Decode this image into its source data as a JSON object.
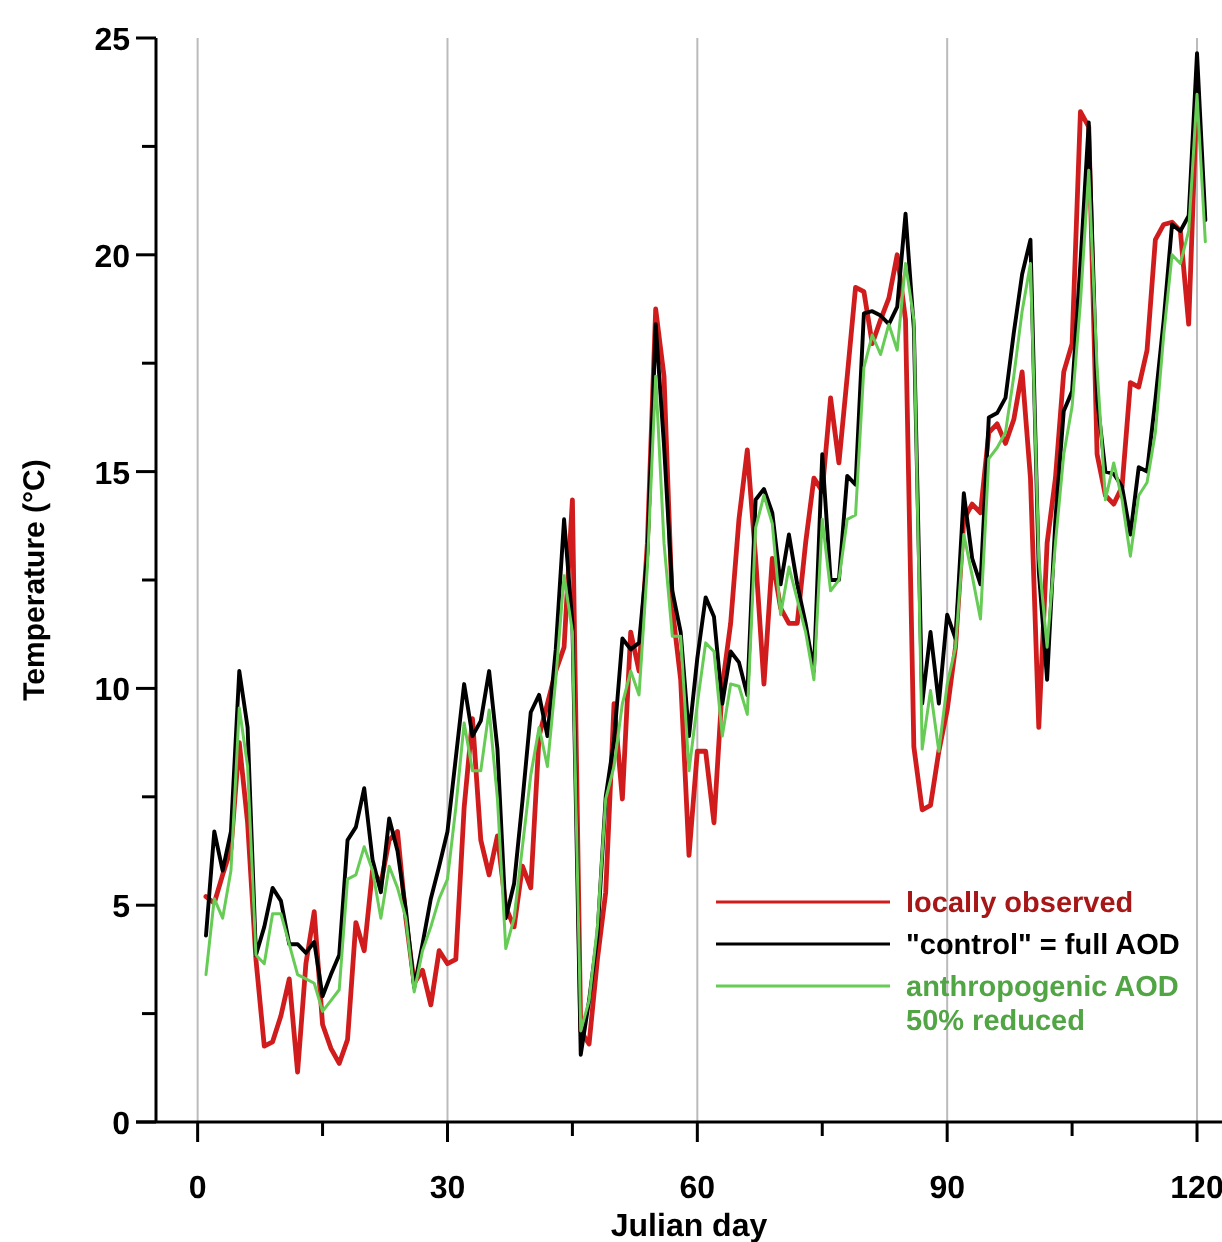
{
  "chart_data": {
    "type": "line",
    "xlabel": "Julian day",
    "ylabel": "Temperature (°C)",
    "x": [
      1,
      2,
      3,
      4,
      5,
      6,
      7,
      8,
      9,
      10,
      11,
      12,
      13,
      14,
      15,
      16,
      17,
      18,
      19,
      20,
      21,
      22,
      23,
      24,
      25,
      26,
      27,
      28,
      29,
      30,
      31,
      32,
      33,
      34,
      35,
      36,
      37,
      38,
      39,
      40,
      41,
      42,
      43,
      44,
      45,
      46,
      47,
      48,
      49,
      50,
      51,
      52,
      53,
      54,
      55,
      56,
      57,
      58,
      59,
      60,
      61,
      62,
      63,
      64,
      65,
      66,
      67,
      68,
      69,
      70,
      71,
      72,
      73,
      74,
      75,
      76,
      77,
      78,
      79,
      80,
      81,
      82,
      83,
      84,
      85,
      86,
      87,
      88,
      89,
      90,
      91,
      92,
      93,
      94,
      95,
      96,
      97,
      98,
      99,
      100,
      101,
      102,
      103,
      104,
      105,
      106,
      107,
      108,
      109,
      110,
      111,
      112,
      113,
      114,
      115,
      116,
      117,
      118,
      119,
      120,
      121
    ],
    "series": [
      {
        "name": "locally observed",
        "color": "#d01c1c",
        "values": [
          5.2,
          5.05,
          5.7,
          6.3,
          8.75,
          6.9,
          3.75,
          1.75,
          1.85,
          2.45,
          3.3,
          1.15,
          3.65,
          4.85,
          2.25,
          1.7,
          1.35,
          1.9,
          4.6,
          3.95,
          5.8,
          5.5,
          6.5,
          6.7,
          4.7,
          3.2,
          3.5,
          2.7,
          3.95,
          3.65,
          3.75,
          7.25,
          9.3,
          6.5,
          5.7,
          6.6,
          4.95,
          4.5,
          5.9,
          5.4,
          8.9,
          9.65,
          10.4,
          10.95,
          14.35,
          2.1,
          1.8,
          3.75,
          5.3,
          9.65,
          7.45,
          11.3,
          10.4,
          13.35,
          18.75,
          17.2,
          11.85,
          10.2,
          6.15,
          8.55,
          8.55,
          6.9,
          10.05,
          11.5,
          13.9,
          15.5,
          13,
          10.1,
          13,
          11.85,
          11.5,
          11.5,
          13.35,
          14.85,
          14.55,
          16.7,
          15.2,
          17.2,
          19.25,
          19.15,
          17.95,
          18.5,
          19,
          20,
          18.5,
          8.65,
          7.2,
          7.3,
          8.55,
          9.5,
          10.95,
          13.9,
          14.25,
          14.05,
          15.9,
          16.1,
          15.65,
          16.2,
          17.3,
          14.85,
          9.1,
          13.35,
          14.85,
          17.3,
          17.95,
          23.3,
          22.95,
          15.4,
          14.45,
          14.25,
          14.65,
          17.05,
          16.95,
          17.8,
          20.35,
          20.7,
          20.75,
          20.55,
          18.4,
          23.8,
          null
        ]
      },
      {
        "name": "\"control\" = full AOD",
        "color": "#000000",
        "values": [
          4.3,
          6.7,
          5.8,
          6.7,
          10.4,
          9.1,
          3.85,
          4.5,
          5.4,
          5.1,
          4.1,
          4.1,
          3.9,
          4.15,
          2.9,
          3.4,
          3.85,
          6.5,
          6.8,
          7.7,
          6.05,
          5.3,
          7,
          6.25,
          4.9,
          3.1,
          4.1,
          5.15,
          5.9,
          6.7,
          8.4,
          10.1,
          8.9,
          9.25,
          10.4,
          8.6,
          4.7,
          5.5,
          7.4,
          9.45,
          9.85,
          8.9,
          10.9,
          13.9,
          11.5,
          1.55,
          2.8,
          4.3,
          7.5,
          8.8,
          11.15,
          10.9,
          11.05,
          13.1,
          18.4,
          15.6,
          12.25,
          11.3,
          8.9,
          10.7,
          12.1,
          11.65,
          9.65,
          10.85,
          10.6,
          9.85,
          14.35,
          14.6,
          14.05,
          12.4,
          13.55,
          12.4,
          11.5,
          10.4,
          15.4,
          12.5,
          12.5,
          14.9,
          14.7,
          18.65,
          18.7,
          18.6,
          18.4,
          18.8,
          20.95,
          18.3,
          9.65,
          11.3,
          9.65,
          11.7,
          11.15,
          14.5,
          13,
          12.4,
          16.25,
          16.35,
          16.7,
          18.2,
          19.55,
          20.35,
          12.7,
          10.2,
          13.9,
          16.4,
          16.85,
          19.8,
          23.05,
          16.7,
          15,
          14.95,
          14.65,
          13.55,
          15.1,
          15,
          16.65,
          18.5,
          20.7,
          20.55,
          20.9,
          24.65,
          20.8
        ]
      },
      {
        "name": "anthropogenic AOD\n50% reduced",
        "color": "#66cc55",
        "values": [
          3.4,
          5.15,
          4.7,
          5.8,
          9.55,
          8.2,
          3.85,
          3.65,
          4.8,
          4.8,
          4.1,
          3.4,
          3.3,
          3.2,
          2.55,
          2.8,
          3.05,
          5.6,
          5.7,
          6.35,
          5.8,
          4.7,
          5.9,
          5.4,
          4.7,
          3,
          3.95,
          4.5,
          5.15,
          5.6,
          7.25,
          9.2,
          8.1,
          8.1,
          9.5,
          7.45,
          4,
          4.7,
          6.35,
          8,
          9.1,
          8.2,
          10.2,
          12.6,
          11.3,
          2.1,
          2.8,
          4.5,
          7.45,
          8.2,
          9.65,
          10.4,
          9.85,
          12.8,
          17.2,
          13.35,
          11.2,
          11.2,
          8.1,
          9.65,
          11.05,
          10.85,
          8.9,
          10.1,
          10.05,
          9.4,
          13.7,
          14.45,
          13.8,
          11.7,
          12.8,
          12.05,
          11.3,
          10.2,
          13.9,
          12.25,
          12.5,
          13.9,
          14,
          17.4,
          18.15,
          17.7,
          18.4,
          17.8,
          19.8,
          18.5,
          8.6,
          9.95,
          8.55,
          10.1,
          10.95,
          13.55,
          12.6,
          11.6,
          15.3,
          15.55,
          15.9,
          17.2,
          18.7,
          19.8,
          13,
          10.95,
          13.35,
          15.4,
          16.5,
          18.9,
          21.95,
          17.4,
          14.35,
          15.2,
          14.35,
          13.05,
          14.45,
          14.75,
          15.9,
          18.15,
          20,
          19.8,
          20.55,
          23.7,
          20.3
        ]
      }
    ],
    "xlim": [
      -5,
      123
    ],
    "ylim": [
      0,
      25
    ],
    "xticks": [
      0,
      {
        "value": 15,
        "label": null
      },
      30,
      {
        "value": 45,
        "label": null
      },
      60,
      {
        "value": 75,
        "label": null
      },
      90,
      {
        "value": 105,
        "label": null
      },
      120
    ],
    "yticks": [
      0,
      {
        "value": 2.5,
        "label": null
      },
      5,
      {
        "value": 7.5,
        "label": null
      },
      10,
      {
        "value": 12.5,
        "label": null
      },
      15,
      {
        "value": 17.5,
        "label": null
      },
      20,
      {
        "value": 22.5,
        "label": null
      },
      25
    ],
    "grid": "x",
    "legend": "bottom right",
    "marker": "none",
    "line_style": "solid"
  }
}
